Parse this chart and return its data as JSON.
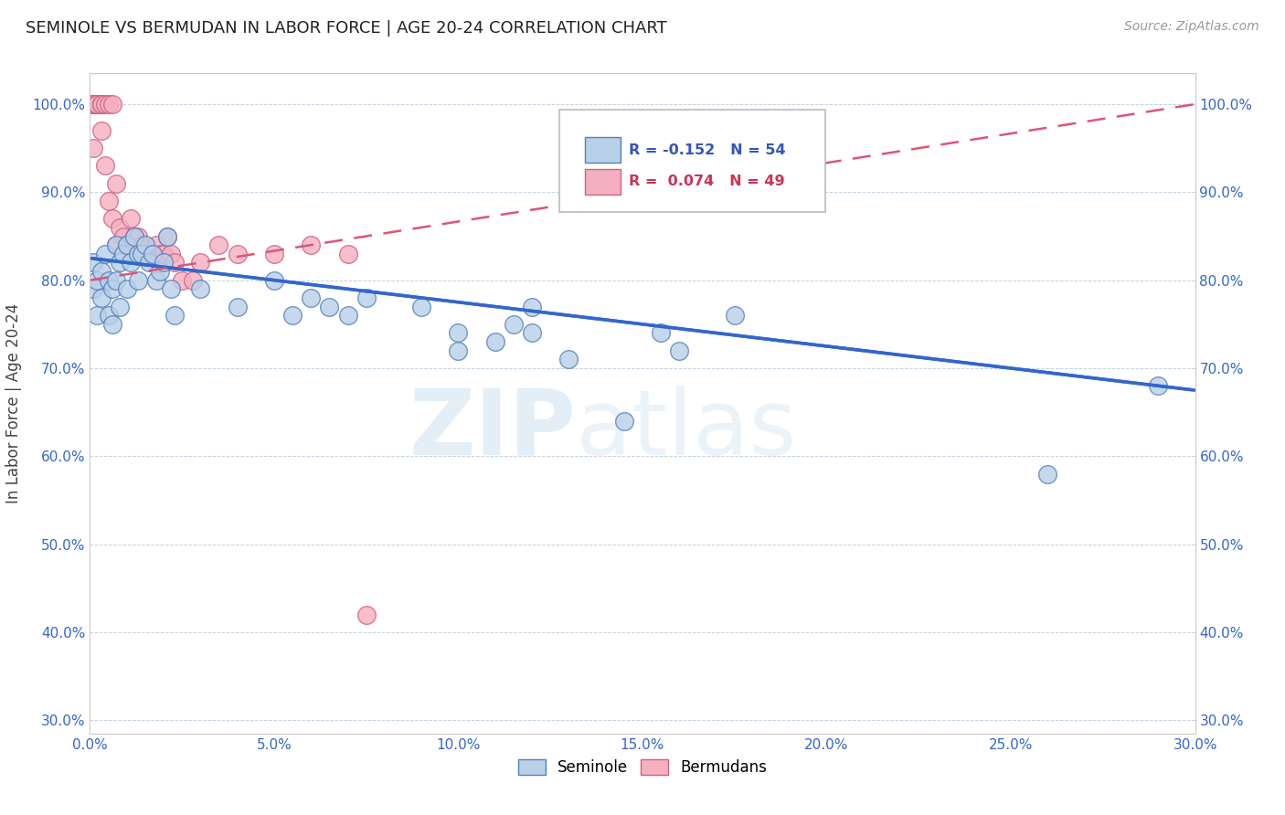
{
  "title": "SEMINOLE VS BERMUDAN IN LABOR FORCE | AGE 20-24 CORRELATION CHART",
  "source": "Source: ZipAtlas.com",
  "ylabel": "In Labor Force | Age 20-24",
  "xlim": [
    0.0,
    0.3
  ],
  "ylim": [
    0.285,
    1.035
  ],
  "xticks": [
    0.0,
    0.05,
    0.1,
    0.15,
    0.2,
    0.25,
    0.3
  ],
  "xtick_labels": [
    "0.0%",
    "5.0%",
    "10.0%",
    "15.0%",
    "20.0%",
    "25.0%",
    "30.0%"
  ],
  "yticks": [
    0.3,
    0.4,
    0.5,
    0.6,
    0.7,
    0.8,
    0.9,
    1.0
  ],
  "ytick_labels": [
    "30.0%",
    "40.0%",
    "50.0%",
    "60.0%",
    "70.0%",
    "80.0%",
    "90.0%",
    "100.0%"
  ],
  "seminole_color": "#b8d0e8",
  "bermudans_color": "#f5b0c0",
  "seminole_edge": "#5580bb",
  "bermudans_edge": "#d06080",
  "trend_seminole_color": "#3366cc",
  "trend_bermudans_color": "#dd5577",
  "watermark": "ZIPatlas",
  "seminole_x": [
    0.001,
    0.001,
    0.002,
    0.002,
    0.003,
    0.003,
    0.004,
    0.005,
    0.005,
    0.006,
    0.006,
    0.007,
    0.007,
    0.008,
    0.008,
    0.009,
    0.01,
    0.01,
    0.011,
    0.012,
    0.013,
    0.013,
    0.014,
    0.015,
    0.016,
    0.017,
    0.018,
    0.019,
    0.02,
    0.021,
    0.022,
    0.023,
    0.03,
    0.04,
    0.05,
    0.055,
    0.06,
    0.065,
    0.07,
    0.075,
    0.09,
    0.1,
    0.11,
    0.115,
    0.12,
    0.145,
    0.155,
    0.16,
    0.175,
    0.26,
    0.29,
    0.1,
    0.12,
    0.13
  ],
  "seminole_y": [
    0.82,
    0.79,
    0.8,
    0.76,
    0.81,
    0.78,
    0.83,
    0.8,
    0.76,
    0.79,
    0.75,
    0.84,
    0.8,
    0.82,
    0.77,
    0.83,
    0.84,
    0.79,
    0.82,
    0.85,
    0.83,
    0.8,
    0.83,
    0.84,
    0.82,
    0.83,
    0.8,
    0.81,
    0.82,
    0.85,
    0.79,
    0.76,
    0.79,
    0.77,
    0.8,
    0.76,
    0.78,
    0.77,
    0.76,
    0.78,
    0.77,
    0.74,
    0.73,
    0.75,
    0.77,
    0.64,
    0.74,
    0.72,
    0.76,
    0.58,
    0.68,
    0.72,
    0.74,
    0.71
  ],
  "bermudans_x": [
    0.001,
    0.001,
    0.001,
    0.001,
    0.001,
    0.001,
    0.001,
    0.001,
    0.001,
    0.002,
    0.002,
    0.002,
    0.002,
    0.003,
    0.003,
    0.003,
    0.004,
    0.004,
    0.005,
    0.005,
    0.006,
    0.006,
    0.007,
    0.007,
    0.008,
    0.009,
    0.01,
    0.011,
    0.012,
    0.013,
    0.014,
    0.015,
    0.016,
    0.017,
    0.018,
    0.019,
    0.02,
    0.021,
    0.022,
    0.023,
    0.025,
    0.028,
    0.03,
    0.035,
    0.04,
    0.05,
    0.06,
    0.07,
    0.075
  ],
  "bermudans_y": [
    1.0,
    1.0,
    1.0,
    1.0,
    1.0,
    1.0,
    1.0,
    1.0,
    0.95,
    1.0,
    1.0,
    1.0,
    1.0,
    1.0,
    1.0,
    0.97,
    1.0,
    0.93,
    1.0,
    0.89,
    1.0,
    0.87,
    0.91,
    0.84,
    0.86,
    0.85,
    0.84,
    0.87,
    0.85,
    0.85,
    0.84,
    0.83,
    0.83,
    0.83,
    0.84,
    0.83,
    0.83,
    0.85,
    0.83,
    0.82,
    0.8,
    0.8,
    0.82,
    0.84,
    0.83,
    0.83,
    0.84,
    0.83,
    0.42
  ],
  "trend_seminole_x0": 0.0,
  "trend_seminole_y0": 0.825,
  "trend_seminole_x1": 0.3,
  "trend_seminole_y1": 0.675,
  "trend_bermudans_x0": 0.0,
  "trend_bermudans_y0": 0.8,
  "trend_bermudans_x1": 0.3,
  "trend_bermudans_y1": 1.0
}
